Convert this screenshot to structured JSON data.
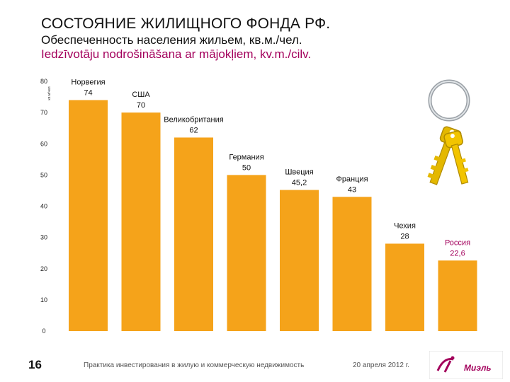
{
  "header": {
    "title": "СОСТОЯНИЕ ЖИЛИЩНОГО ФОНДА РФ.",
    "subtitle_ru": "Обеспеченность населения жильем, кв.м./чел.",
    "subtitle_lv": "Iedzīvotāju nodrošināšana ar mājokļiem, kv.m./cilv."
  },
  "chart_data": {
    "type": "bar",
    "categories": [
      "Норвегия",
      "США",
      "Великобритания",
      "Германия",
      "Швеция",
      "Франция",
      "Чехия",
      "Россия"
    ],
    "values": [
      74,
      70,
      62,
      50,
      45.2,
      43,
      28,
      22.6
    ],
    "value_labels": [
      "74",
      "70",
      "62",
      "50",
      "45,2",
      "43",
      "28",
      "22,6"
    ],
    "highlight": "Россия",
    "ylabel": "кв.м/чел",
    "ylim": [
      0,
      80
    ],
    "yticks": [
      0,
      10,
      20,
      30,
      40,
      50,
      60,
      70,
      80
    ],
    "grid": false,
    "colors": {
      "bar": "#f5a31a",
      "label": "#111111",
      "highlight_label": "#a3005c"
    }
  },
  "footer": {
    "page_number": "16",
    "text": "Практика инвестирования в жилую и коммерческую недвижимость",
    "date": "20 апреля 2012 г.",
    "logo_text": "Миэль"
  },
  "icons": {
    "decoration": "keys-icon",
    "logo": "logo-icon"
  }
}
